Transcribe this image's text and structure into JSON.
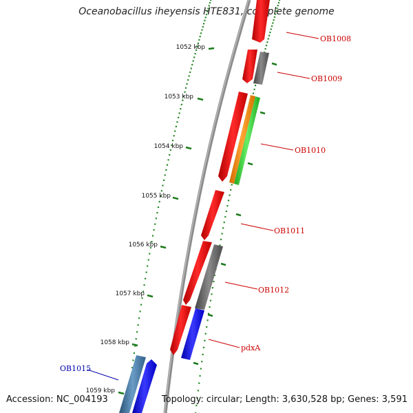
{
  "title": "Oceanobacillus iheyensis HTE831, complete genome",
  "footer": {
    "accession": "Accession: NC_004193",
    "summary": "Topology: circular; Length: 3,630,528 bp; Genes: 3,591"
  },
  "colors": {
    "backbone": "#8a8a8a",
    "tick": "#1a7a1a",
    "forward_gene": "#e00000",
    "gray_feature": "#5f5f5f",
    "orange_feature": "#f08a00",
    "green_feature": "#33cc33",
    "blue_feature": "#0000ee",
    "steel_feature": "#3b6f9a",
    "label_red": "#cc0000",
    "label_blue": "#0000aa"
  },
  "ticks": [
    {
      "label": "1052 kbp",
      "kbp": 1052
    },
    {
      "label": "1053 kbp",
      "kbp": 1053
    },
    {
      "label": "1054 kbp",
      "kbp": 1054
    },
    {
      "label": "1055 kbp",
      "kbp": 1055
    },
    {
      "label": "1056 kbp",
      "kbp": 1056
    },
    {
      "label": "1057 kbp",
      "kbp": 1057
    },
    {
      "label": "1058 kbp",
      "kbp": 1058
    },
    {
      "label": "1059 kbp",
      "kbp": 1059
    }
  ],
  "genes": [
    {
      "label": "OB1008",
      "color": "label_red"
    },
    {
      "label": "OB1009",
      "color": "label_red"
    },
    {
      "label": "OB1010",
      "color": "label_red"
    },
    {
      "label": "OB1011",
      "color": "label_red"
    },
    {
      "label": "OB1012",
      "color": "label_red"
    },
    {
      "label": "pdxA",
      "color": "label_red"
    },
    {
      "label": "OB1015",
      "color": "label_blue"
    }
  ]
}
